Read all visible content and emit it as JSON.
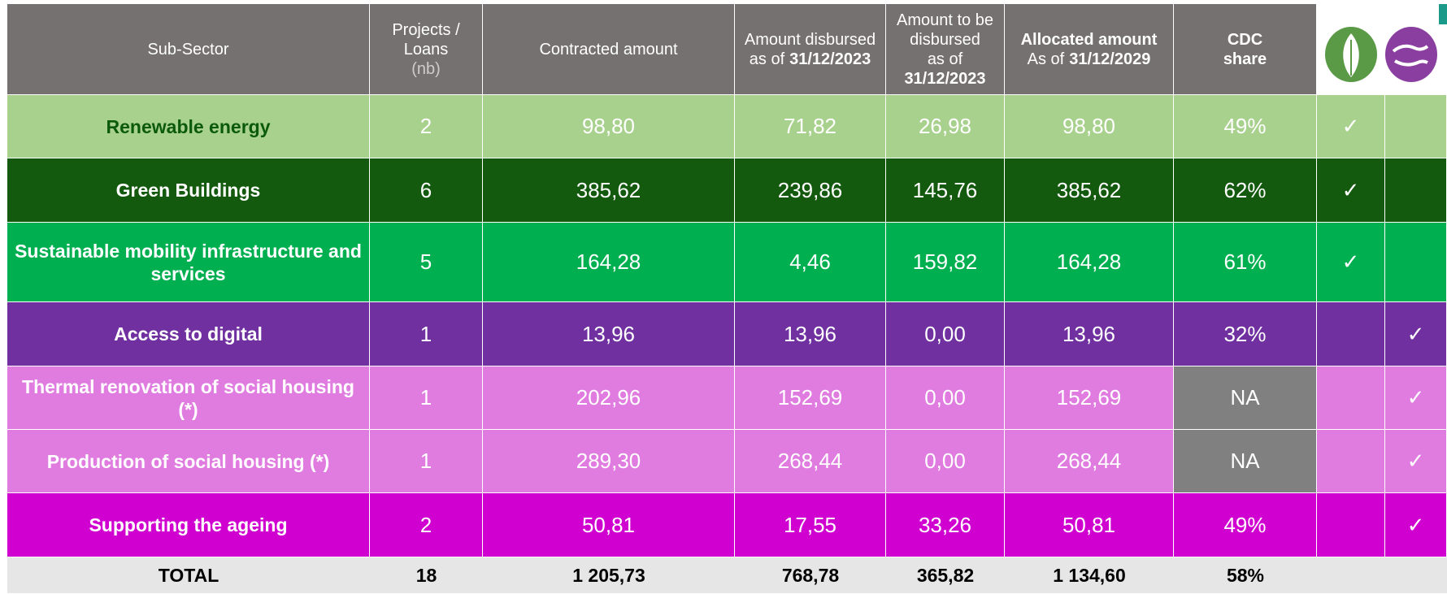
{
  "table": {
    "header": [
      [
        [
          {
            "text": "Sub-Sector"
          }
        ]
      ],
      [
        [
          {
            "text": "Projects /"
          }
        ],
        [
          {
            "text": "Loans"
          }
        ],
        [
          {
            "text": "(nb)",
            "style": "light"
          }
        ]
      ],
      [
        [
          {
            "text": "Contracted amount"
          }
        ]
      ],
      [
        [
          {
            "text": "Amount disbursed"
          }
        ],
        [
          {
            "text": "as of"
          },
          {
            "text": "31/12/2023",
            "style": "bold"
          }
        ]
      ],
      [
        [
          {
            "text": "Amount to be"
          }
        ],
        [
          {
            "text": "disbursed"
          }
        ],
        [
          {
            "text": "as of"
          }
        ],
        [
          {
            "text": "31/12/2023",
            "style": "bold"
          }
        ]
      ],
      [
        [
          {
            "text": "Allocated amount",
            "style": "bold"
          }
        ],
        [
          {
            "text": "As of"
          },
          {
            "text": "31/12/2029",
            "style": "bold"
          }
        ]
      ],
      [
        [
          {
            "text": "CDC",
            "style": "bold"
          }
        ],
        [
          {
            "text": "share",
            "style": "bold"
          }
        ]
      ]
    ],
    "rows": [
      {
        "cells": [
          "Renewable energy",
          "2",
          "98,80",
          "71,82",
          "26,98",
          "98,80",
          "49%"
        ],
        "green": "✓",
        "social": null,
        "color": "#a9d18e",
        "sector_color": "#0b5a0b"
      },
      {
        "cells": [
          "Green Buildings",
          "6",
          "385,62",
          "239,86",
          "145,76",
          "385,62",
          "62%"
        ],
        "green": "✓",
        "social": null,
        "color": "#145a0e",
        "sector_color": "#ffffff"
      },
      {
        "cells": [
          "Sustainable mobility infrastructure and services",
          "5",
          "164,28",
          "4,46",
          "159,82",
          "164,28",
          "61%"
        ],
        "green": "✓",
        "social": null,
        "color": "#00b050",
        "sector_color": "#ffffff"
      },
      {
        "cells": [
          "Access to digital",
          "1",
          "13,96",
          "13,96",
          "0,00",
          "13,96",
          "32%"
        ],
        "green": null,
        "social": "✓",
        "color": "#7030a0",
        "sector_color": "#ffffff"
      },
      {
        "cells": [
          "Thermal renovation of social housing (*)",
          "1",
          "202,96",
          "152,69",
          "0,00",
          "152,69",
          "NA"
        ],
        "green": null,
        "social": "✓",
        "color": "#e07be0",
        "sector_color": "#ffffff"
      },
      {
        "cells": [
          "Production of social housing (*)",
          "1",
          "289,30",
          "268,44",
          "0,00",
          "268,44",
          "NA"
        ],
        "green": null,
        "social": "✓",
        "color": "#e07be0",
        "sector_color": "#ffffff"
      },
      {
        "cells": [
          "Supporting the ageing",
          "2",
          "50,81",
          "17,55",
          "33,26",
          "50,81",
          "49%"
        ],
        "green": null,
        "social": "✓",
        "color": "#d000d0",
        "sector_color": "#ffffff"
      }
    ],
    "total": [
      "TOTAL",
      "18",
      "1 205,73",
      "768,78",
      "365,82",
      "1 134,60",
      "58%"
    ],
    "na_color": "#808080"
  }
}
